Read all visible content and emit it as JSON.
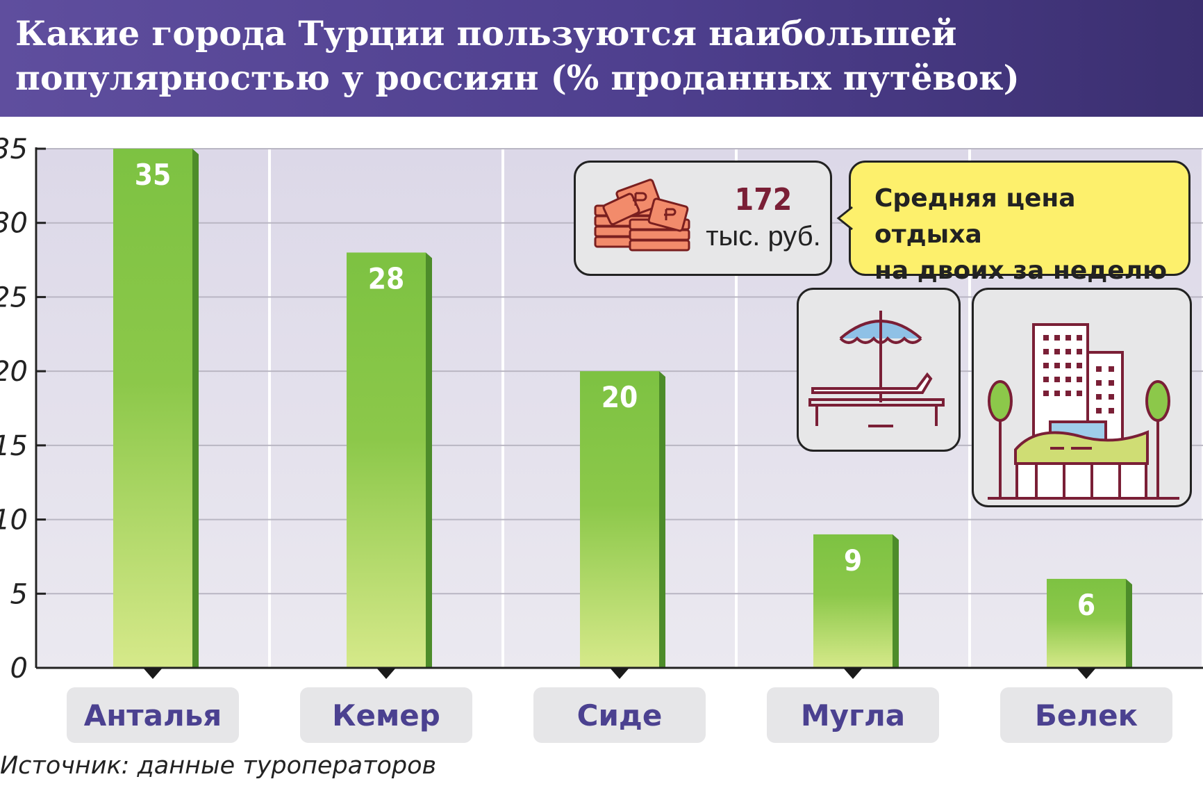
{
  "header": {
    "title": "Какие города Турции пользуются наибольшей популярностью у россиян (% проданных путёвок)"
  },
  "chart_data": {
    "type": "bar",
    "title": "Какие города Турции пользуются наибольшей популярностью у россиян (% проданных путёвок)",
    "categories": [
      "Анталья",
      "Кемер",
      "Сиде",
      "Мугла",
      "Белек"
    ],
    "values": [
      35,
      28,
      20,
      9,
      6
    ],
    "value_labels": [
      "35",
      "28",
      "20",
      "9",
      "6"
    ],
    "ylim": [
      0,
      35
    ],
    "yticks": [
      "0",
      "5",
      "10",
      "15",
      "20",
      "25",
      "30",
      "35"
    ],
    "grid": true,
    "bar_color": "#7dc242",
    "bar_color_light": "#d6e98a"
  },
  "price_note": {
    "value": "172",
    "unit": "тыс. руб.",
    "text_line1": "Средняя цена отдыха",
    "text_line2": "на двоих за неделю"
  },
  "icons": [
    "money-stack-icon",
    "beach-umbrella-icon",
    "hotel-icon"
  ],
  "source": "Источник: данные туроператоров"
}
